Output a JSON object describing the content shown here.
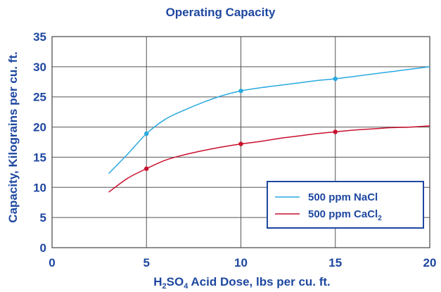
{
  "chart_data": {
    "type": "line",
    "title": "Operating Capacity",
    "xlabel": {
      "prefix": "H",
      "sub1": "2",
      "mid": "SO",
      "sub2": "4",
      "rest": " Acid Dose, lbs per cu. ft."
    },
    "ylabel": "Capacity, Kilograins per cu. ft.",
    "xlim": [
      0,
      20
    ],
    "ylim": [
      0,
      35
    ],
    "xticks": [
      0,
      5,
      10,
      15,
      20
    ],
    "yticks": [
      0,
      5,
      10,
      15,
      20,
      25,
      30,
      35
    ],
    "grid": true,
    "legend_position": "bottom-right",
    "series": [
      {
        "name": "500 ppm NaCl",
        "color": "#29a9e0",
        "x": [
          3,
          4,
          5,
          6,
          7,
          8,
          9,
          10,
          11,
          12,
          13,
          14,
          15,
          16,
          17,
          18,
          19,
          20
        ],
        "values": [
          12.3,
          15.5,
          18.9,
          21.3,
          22.8,
          24.1,
          25.2,
          26.0,
          26.5,
          26.9,
          27.3,
          27.7,
          28.0,
          28.4,
          28.8,
          29.2,
          29.6,
          30.0
        ],
        "markers_x": [
          5,
          10,
          15
        ],
        "markers_y": [
          18.9,
          26.0,
          28.0
        ]
      },
      {
        "name": "500 ppm CaCl",
        "name_subscript": "2",
        "color": "#c8102e",
        "x": [
          3,
          4,
          5,
          6,
          7,
          8,
          9,
          10,
          11,
          12,
          13,
          14,
          15,
          16,
          17,
          18,
          19,
          20
        ],
        "values": [
          9.2,
          11.5,
          13.1,
          14.5,
          15.4,
          16.1,
          16.7,
          17.2,
          17.6,
          18.1,
          18.5,
          18.9,
          19.2,
          19.5,
          19.7,
          19.9,
          20.0,
          20.2
        ],
        "markers_x": [
          5,
          10,
          15
        ],
        "markers_y": [
          13.1,
          17.2,
          19.2
        ]
      }
    ]
  }
}
